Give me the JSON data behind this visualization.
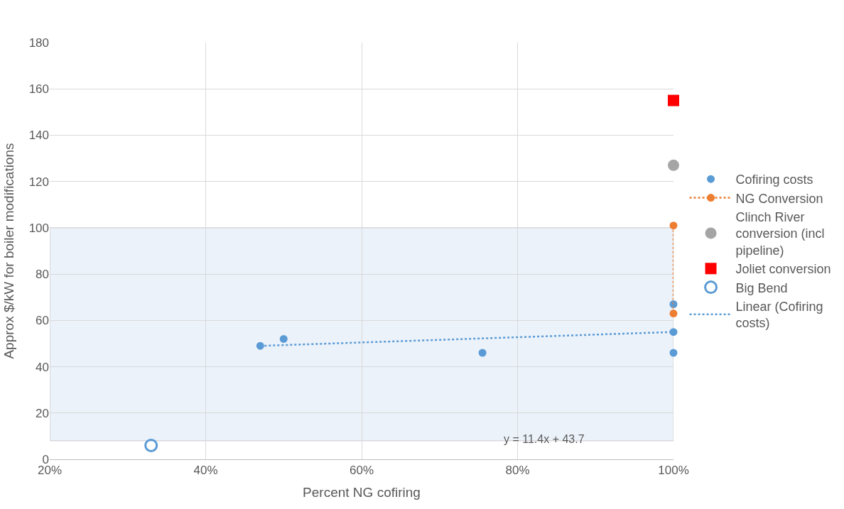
{
  "chart_data": {
    "type": "scatter",
    "xlabel": "Percent NG cofiring",
    "ylabel": "Approx $/kW for boiler modifications",
    "xlim": [
      20,
      100
    ],
    "xticks": [
      {
        "value": 20,
        "label": "20%"
      },
      {
        "value": 40,
        "label": "40%"
      },
      {
        "value": 60,
        "label": "60%"
      },
      {
        "value": 80,
        "label": "80%"
      },
      {
        "value": 100,
        "label": "100%"
      }
    ],
    "ylim": [
      0,
      180
    ],
    "yticks": [
      0,
      20,
      40,
      60,
      80,
      100,
      120,
      140,
      160,
      180
    ],
    "grid": true,
    "legend": "right",
    "series": [
      {
        "name": "Cofiring costs",
        "marker": "circle",
        "color": "#5b9bd5",
        "x": [
          47,
          50,
          75.5,
          100,
          100,
          100
        ],
        "values": [
          49,
          52,
          46,
          67,
          55,
          46
        ]
      },
      {
        "name": "NG Conversion",
        "type": "line",
        "marker": "circle",
        "line_style": "dotted",
        "color": "#ed7d31",
        "x": [
          100,
          100
        ],
        "values": [
          101,
          63
        ]
      },
      {
        "name": "Clinch River conversion (incl pipeline)",
        "marker": "circle",
        "color": "#a5a5a5",
        "x": [
          100
        ],
        "values": [
          127
        ]
      },
      {
        "name": "Joliet conversion",
        "marker": "square",
        "color": "#ff0000",
        "x": [
          100
        ],
        "values": [
          155
        ]
      },
      {
        "name": "Big Bend",
        "marker": "circle",
        "color": "#5b9bd5",
        "x": [
          33
        ],
        "values": [
          6
        ]
      },
      {
        "name": "Linear (Cofiring costs)",
        "type": "line",
        "marker": "none",
        "line_style": "dotted",
        "color": "#5b9bd5",
        "x": [
          47,
          100
        ],
        "values": [
          49,
          55
        ]
      }
    ],
    "bands": [
      {
        "axis": "y",
        "from": 8,
        "to": 100,
        "color": "#deebf7"
      }
    ],
    "annotations": [
      "y = 11.4x + 43.7"
    ]
  }
}
